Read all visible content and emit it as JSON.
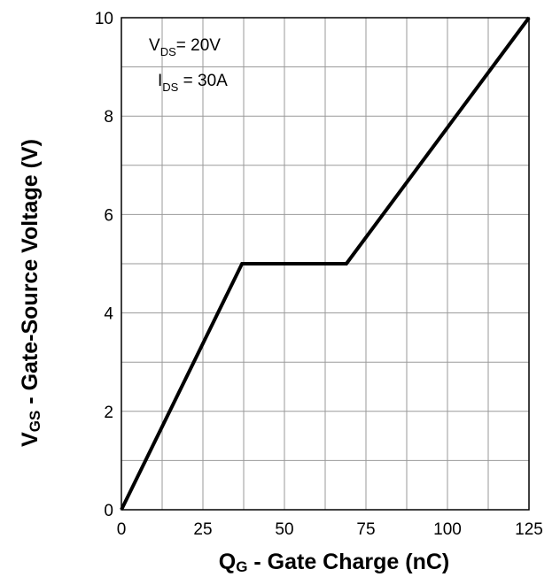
{
  "chart_data": {
    "type": "line",
    "title": "",
    "xlabel": {
      "main": "Q",
      "sub": "G",
      "rest": " - Gate Charge (nC)"
    },
    "ylabel": {
      "main": "V",
      "sub": "GS",
      "rest": " - Gate-Source Voltage (V)"
    },
    "xlim": [
      0,
      125
    ],
    "ylim": [
      0,
      10
    ],
    "x_ticks": [
      0,
      25,
      50,
      75,
      100,
      125
    ],
    "y_ticks": [
      0,
      2,
      4,
      6,
      8,
      10
    ],
    "grid_x_step": 12.5,
    "grid_y_step": 1,
    "grid": true,
    "line_color": "#000000",
    "series": [
      {
        "x": [
          0,
          37,
          69,
          125
        ],
        "y": [
          0,
          5,
          5,
          10
        ]
      }
    ],
    "annotations": [
      {
        "main": "V",
        "sub": "DS",
        "rest": "= 20V"
      },
      {
        "main": "I",
        "sub": "DS",
        "rest": " = 30A"
      }
    ]
  }
}
